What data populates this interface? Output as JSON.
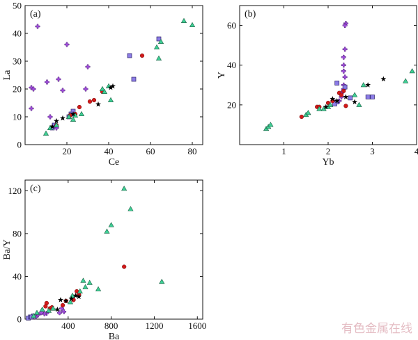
{
  "watermark": "有色金属在线",
  "marker_colors": {
    "green_triangle": "#3ecf95",
    "purple_diamond": "#a34ee0",
    "purple_square": "#8c7ce6",
    "red_circle": "#d11a1a",
    "black_star": "#000000"
  },
  "chart_data": [
    {
      "panel_label": "(a)",
      "type": "scatter",
      "xlabel": "Ce",
      "ylabel": "La",
      "xlim": [
        0,
        85
      ],
      "ylim": [
        0,
        50
      ],
      "xticks": [
        20,
        40,
        60,
        80
      ],
      "yticks": [
        0,
        10,
        20,
        30,
        40,
        50
      ],
      "series": [
        {
          "marker": "purple_diamond",
          "points": [
            [
              6,
              42.5
            ],
            [
              3,
              20.5
            ],
            [
              4,
              20
            ],
            [
              3,
              13
            ],
            [
              10.5,
              22.5
            ],
            [
              20,
              36
            ],
            [
              16,
              23.5
            ],
            [
              30,
              28
            ],
            [
              18,
              19.5
            ],
            [
              29,
              20
            ],
            [
              12,
              10
            ],
            [
              15,
              6
            ]
          ]
        },
        {
          "marker": "purple_square",
          "points": [
            [
              64,
              38
            ],
            [
              50,
              32
            ],
            [
              52,
              23.5
            ],
            [
              22,
              11
            ],
            [
              23,
              12
            ],
            [
              21,
              10
            ],
            [
              13,
              6
            ],
            [
              14,
              7
            ]
          ]
        },
        {
          "marker": "red_circle",
          "points": [
            [
              56,
              32
            ],
            [
              37,
              19
            ],
            [
              31,
              15.5
            ],
            [
              33,
              16
            ],
            [
              26,
              13.5
            ],
            [
              24,
              11
            ],
            [
              21.5,
              10.5
            ],
            [
              15,
              7
            ]
          ]
        },
        {
          "marker": "green_triangle",
          "points": [
            [
              76,
              44.5
            ],
            [
              80,
              43
            ],
            [
              65,
              37
            ],
            [
              63,
              35
            ],
            [
              64,
              31
            ],
            [
              41,
              16
            ],
            [
              40,
              21
            ],
            [
              37,
              20
            ],
            [
              38,
              19
            ],
            [
              27,
              11
            ],
            [
              24,
              10.5
            ],
            [
              23,
              9
            ],
            [
              21,
              10
            ],
            [
              15,
              7
            ],
            [
              12,
              6
            ],
            [
              10,
              4
            ]
          ]
        },
        {
          "marker": "black_star",
          "points": [
            [
              42,
              21
            ],
            [
              41,
              20.5
            ],
            [
              35,
              14.5
            ],
            [
              23,
              11
            ],
            [
              18,
              9.5
            ],
            [
              15,
              8.5
            ],
            [
              13,
              6.5
            ]
          ]
        }
      ]
    },
    {
      "panel_label": "(b)",
      "type": "scatter",
      "xlabel": "Yb",
      "ylabel": "Y",
      "xlim": [
        0,
        4
      ],
      "ylim": [
        0,
        70
      ],
      "xticks": [
        1,
        2,
        3,
        4
      ],
      "yticks": [
        20,
        40,
        60
      ],
      "series": [
        {
          "marker": "purple_diamond",
          "points": [
            [
              2.4,
              61
            ],
            [
              2.38,
              60
            ],
            [
              2.38,
              48
            ],
            [
              2.35,
              44
            ],
            [
              2.35,
              40
            ],
            [
              2.35,
              37
            ],
            [
              2.38,
              34
            ],
            [
              2.35,
              30
            ],
            [
              2.35,
              28
            ],
            [
              2.3,
              26
            ],
            [
              2.3,
              24
            ],
            [
              2.25,
              22
            ]
          ]
        },
        {
          "marker": "purple_square",
          "points": [
            [
              2.2,
              31
            ],
            [
              2.38,
              29
            ],
            [
              2.9,
              24
            ],
            [
              3.0,
              24
            ],
            [
              2.5,
              23.5
            ],
            [
              2.2,
              21.5
            ],
            [
              2.15,
              20.5
            ]
          ]
        },
        {
          "marker": "red_circle",
          "points": [
            [
              1.4,
              14
            ],
            [
              1.75,
              19
            ],
            [
              1.8,
              19
            ],
            [
              2.0,
              21
            ],
            [
              2.1,
              22
            ],
            [
              2.25,
              26
            ],
            [
              2.35,
              27
            ],
            [
              2.4,
              19.5
            ],
            [
              2.3,
              25
            ]
          ]
        },
        {
          "marker": "green_triangle",
          "points": [
            [
              0.6,
              8
            ],
            [
              0.65,
              9
            ],
            [
              0.7,
              10
            ],
            [
              1.5,
              15
            ],
            [
              1.55,
              16
            ],
            [
              1.8,
              18
            ],
            [
              1.9,
              18
            ],
            [
              2.0,
              19
            ],
            [
              2.05,
              20
            ],
            [
              2.7,
              20
            ],
            [
              2.6,
              25
            ],
            [
              2.8,
              30
            ],
            [
              3.75,
              32
            ],
            [
              3.9,
              37
            ]
          ]
        },
        {
          "marker": "black_star",
          "points": [
            [
              3.25,
              33
            ],
            [
              2.9,
              30
            ],
            [
              2.6,
              21.5
            ],
            [
              2.4,
              24
            ],
            [
              2.2,
              22
            ],
            [
              2.1,
              23
            ],
            [
              1.95,
              19
            ]
          ]
        }
      ]
    },
    {
      "panel_label": "(c)",
      "type": "scatter",
      "xlabel": "Ba",
      "ylabel": "Ba/Y",
      "xlim": [
        0,
        1650
      ],
      "ylim": [
        0,
        130
      ],
      "xticks": [
        400,
        800,
        1200,
        1600
      ],
      "yticks": [
        0,
        40,
        80,
        120
      ],
      "series": [
        {
          "marker": "purple_diamond",
          "points": [
            [
              340,
              10
            ],
            [
              360,
              7
            ],
            [
              320,
              6
            ],
            [
              200,
              5.5
            ],
            [
              180,
              5
            ],
            [
              150,
              6
            ],
            [
              120,
              4
            ],
            [
              100,
              2
            ]
          ]
        },
        {
          "marker": "purple_square",
          "points": [
            [
              30,
              1
            ],
            [
              50,
              2
            ],
            [
              80,
              3
            ],
            [
              60,
              2
            ]
          ]
        },
        {
          "marker": "red_circle",
          "points": [
            [
              920,
              49
            ],
            [
              200,
              15
            ],
            [
              190,
              12
            ],
            [
              230,
              10
            ],
            [
              350,
              13
            ],
            [
              380,
              17
            ],
            [
              480,
              26
            ],
            [
              500,
              23
            ],
            [
              450,
              18
            ],
            [
              250,
              11
            ]
          ]
        },
        {
          "marker": "green_triangle",
          "points": [
            [
              920,
              122
            ],
            [
              980,
              103
            ],
            [
              800,
              88
            ],
            [
              760,
              82
            ],
            [
              1270,
              35
            ],
            [
              680,
              28
            ],
            [
              600,
              34
            ],
            [
              560,
              30
            ],
            [
              540,
              36
            ],
            [
              510,
              26
            ],
            [
              440,
              22
            ],
            [
              420,
              16
            ],
            [
              260,
              10
            ],
            [
              220,
              8
            ],
            [
              160,
              9
            ],
            [
              110,
              6
            ],
            [
              80,
              3
            ]
          ]
        },
        {
          "marker": "black_star",
          "points": [
            [
              470,
              22
            ],
            [
              430,
              19
            ],
            [
              380,
              17
            ],
            [
              330,
              18
            ],
            [
              300,
              9
            ],
            [
              500,
              21
            ]
          ]
        }
      ]
    }
  ]
}
